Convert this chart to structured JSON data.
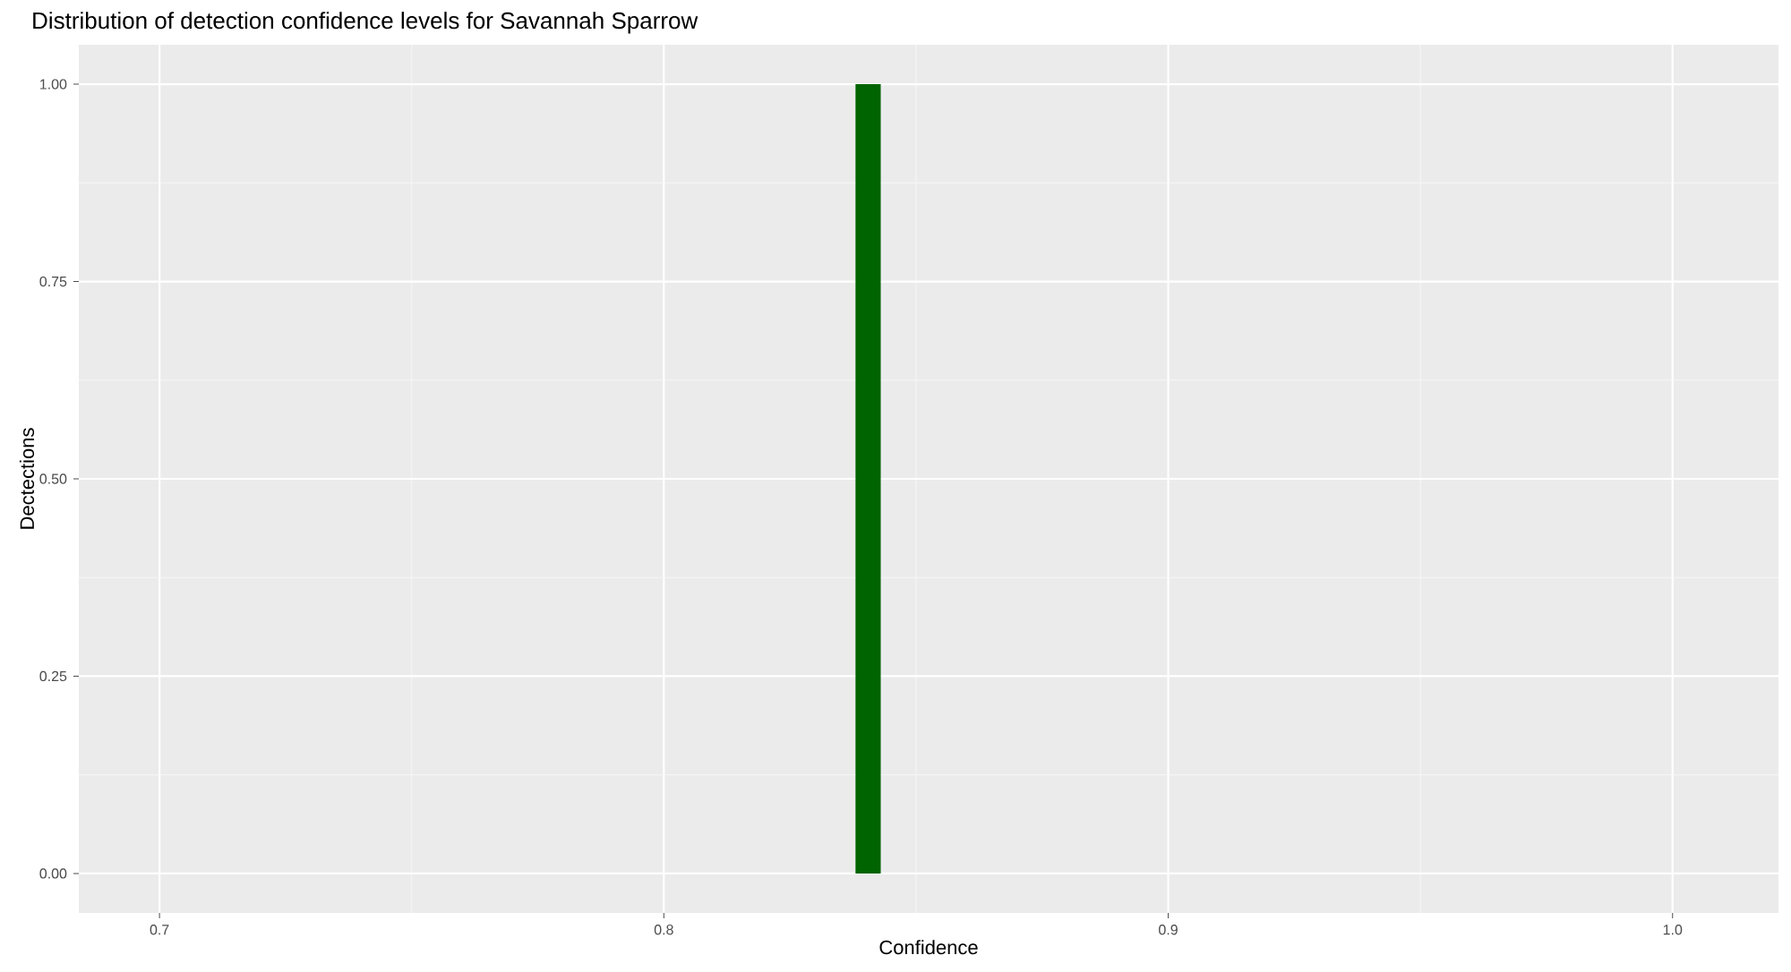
{
  "chart_data": {
    "type": "histogram",
    "title": "Distribution of detection confidence levels for Savannah Sparrow",
    "xlabel": "Confidence",
    "ylabel": "Dectections",
    "bins": [
      0.838,
      0.843
    ],
    "values": [
      1
    ],
    "color": "#006400",
    "xlim": [
      0.684,
      1.021
    ],
    "xticks": [
      {
        "value": 0.7,
        "label": "0.7"
      },
      {
        "value": 0.8,
        "label": "0.8"
      },
      {
        "value": 0.9,
        "label": "0.9"
      },
      {
        "value": 1.0,
        "label": "1.0"
      }
    ],
    "ylim": [
      -0.05,
      1.05
    ],
    "yticks": [
      {
        "value": 0,
        "label": "0.00"
      },
      {
        "value": 0.25,
        "label": "0.25"
      },
      {
        "value": 0.5,
        "label": "0.50"
      },
      {
        "value": 0.75,
        "label": "0.75"
      },
      {
        "value": 1,
        "label": "1.00"
      }
    ],
    "grid": true
  }
}
